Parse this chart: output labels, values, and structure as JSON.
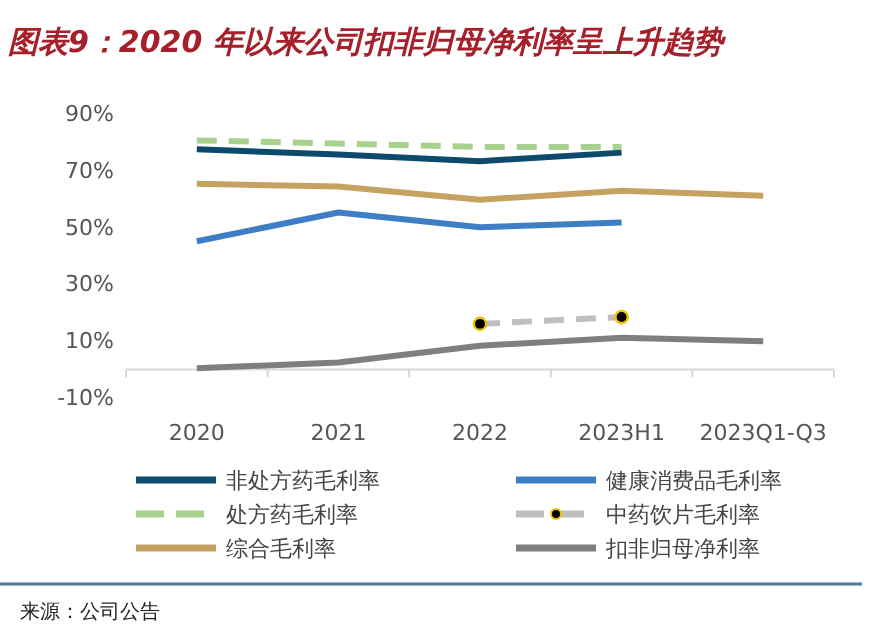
{
  "chart_data": {
    "type": "line",
    "title": "图表9：2020 年以来公司扣非归母净利率呈上升趋势",
    "categories": [
      "2020",
      "2021",
      "2022",
      "2023H1",
      "2023Q1-Q3"
    ],
    "ylim": [
      -10,
      90
    ],
    "yticks": [
      {
        "value": -10,
        "label": "-10%"
      },
      {
        "value": 10,
        "label": "10%"
      },
      {
        "value": 30,
        "label": "30%"
      },
      {
        "value": 50,
        "label": "50%"
      },
      {
        "value": 70,
        "label": "70%"
      },
      {
        "value": 90,
        "label": "90%"
      }
    ],
    "grid": false,
    "legend": "bottom",
    "series": [
      {
        "name": "非处方药毛利率",
        "color": "#0d4a6e",
        "values": [
          77.6,
          75.7,
          73.4,
          76.4,
          null
        ]
      },
      {
        "name": "健康消费品毛利率",
        "color": "#3f7dc4",
        "values": [
          45.2,
          55.3,
          50.1,
          51.8,
          null
        ]
      },
      {
        "name": "处方药毛利率",
        "color": "#a9d18e",
        "line_style": "dashed",
        "values": [
          80.7,
          79.6,
          78.4,
          78.4,
          null
        ]
      },
      {
        "name": "中药饮片毛利率",
        "color": "#bfbfbf",
        "line_style": "dashed",
        "marker": "circle",
        "values": [
          null,
          null,
          16.1,
          18.5,
          null
        ]
      },
      {
        "name": "综合毛利率",
        "color": "#c5a262",
        "values": [
          65.4,
          64.5,
          59.8,
          63,
          61.2
        ]
      },
      {
        "name": "扣非归母净利率",
        "color": "#7f7f7f",
        "values": [
          0.5,
          2.5,
          8.4,
          11.2,
          10
        ]
      }
    ],
    "annotations": [
      "来源：公司公告"
    ]
  }
}
